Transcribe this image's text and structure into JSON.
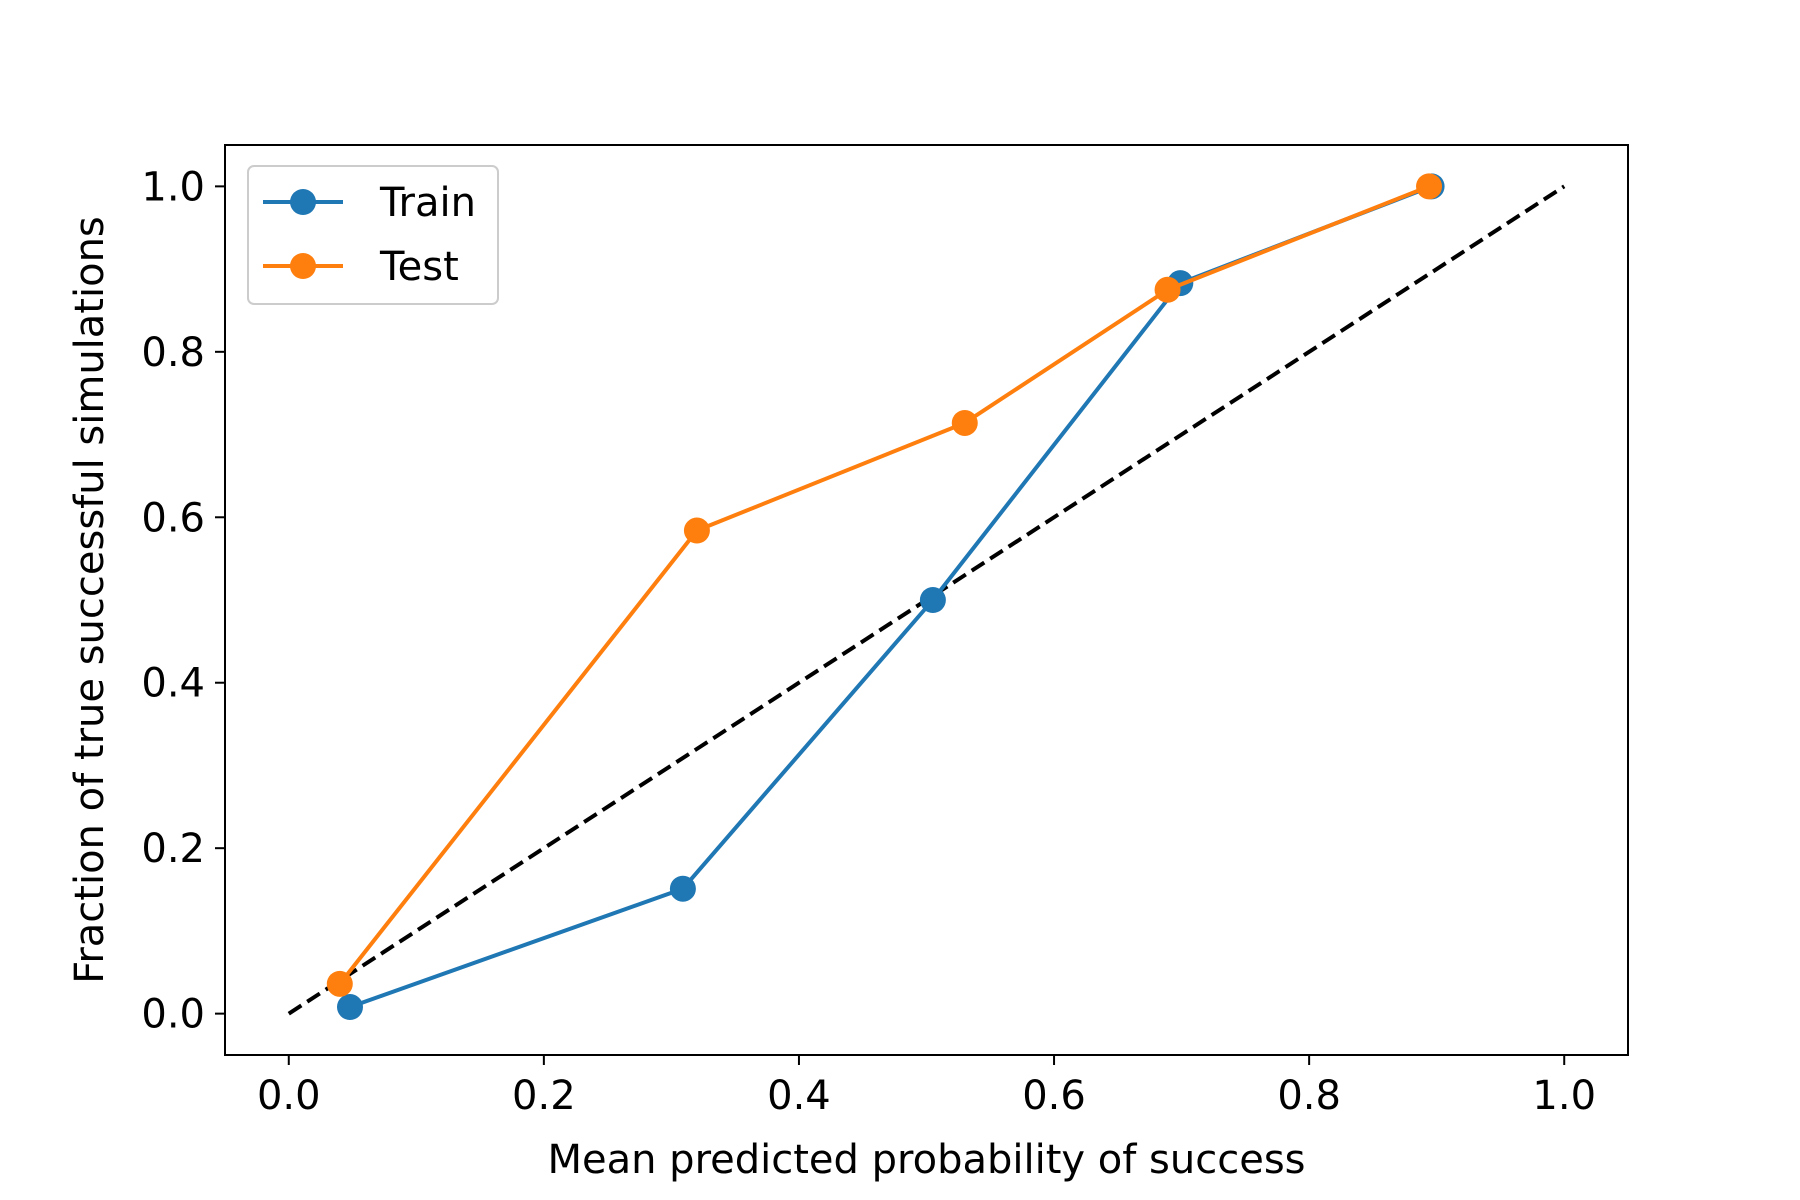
{
  "chart_data": {
    "type": "line",
    "title": "",
    "xlabel": "Mean predicted probability of success",
    "ylabel": "Fraction of true successful simulations",
    "xlim": [
      -0.05,
      1.05
    ],
    "ylim": [
      -0.05,
      1.05
    ],
    "xticks": [
      0.0,
      0.2,
      0.4,
      0.6,
      0.8,
      1.0
    ],
    "yticks": [
      0.0,
      0.2,
      0.4,
      0.6,
      0.8,
      1.0
    ],
    "xtick_labels": [
      "0.0",
      "0.2",
      "0.4",
      "0.6",
      "0.8",
      "1.0"
    ],
    "ytick_labels": [
      "0.0",
      "0.2",
      "0.4",
      "0.6",
      "0.8",
      "1.0"
    ],
    "grid": false,
    "legend_position": "top-left",
    "series": [
      {
        "name": "Train",
        "color": "#1f77b4",
        "marker": "circle",
        "x": [
          0.048,
          0.309,
          0.505,
          0.699,
          0.896
        ],
        "y": [
          0.008,
          0.151,
          0.5,
          0.883,
          1.0
        ]
      },
      {
        "name": "Test",
        "color": "#ff7f0e",
        "marker": "circle",
        "x": [
          0.04,
          0.32,
          0.53,
          0.689,
          0.894
        ],
        "y": [
          0.036,
          0.584,
          0.714,
          0.875,
          1.0
        ]
      }
    ],
    "reference_line": {
      "style": "dashed",
      "color": "#000000",
      "x": [
        0.0,
        1.0
      ],
      "y": [
        0.0,
        1.0
      ]
    }
  }
}
